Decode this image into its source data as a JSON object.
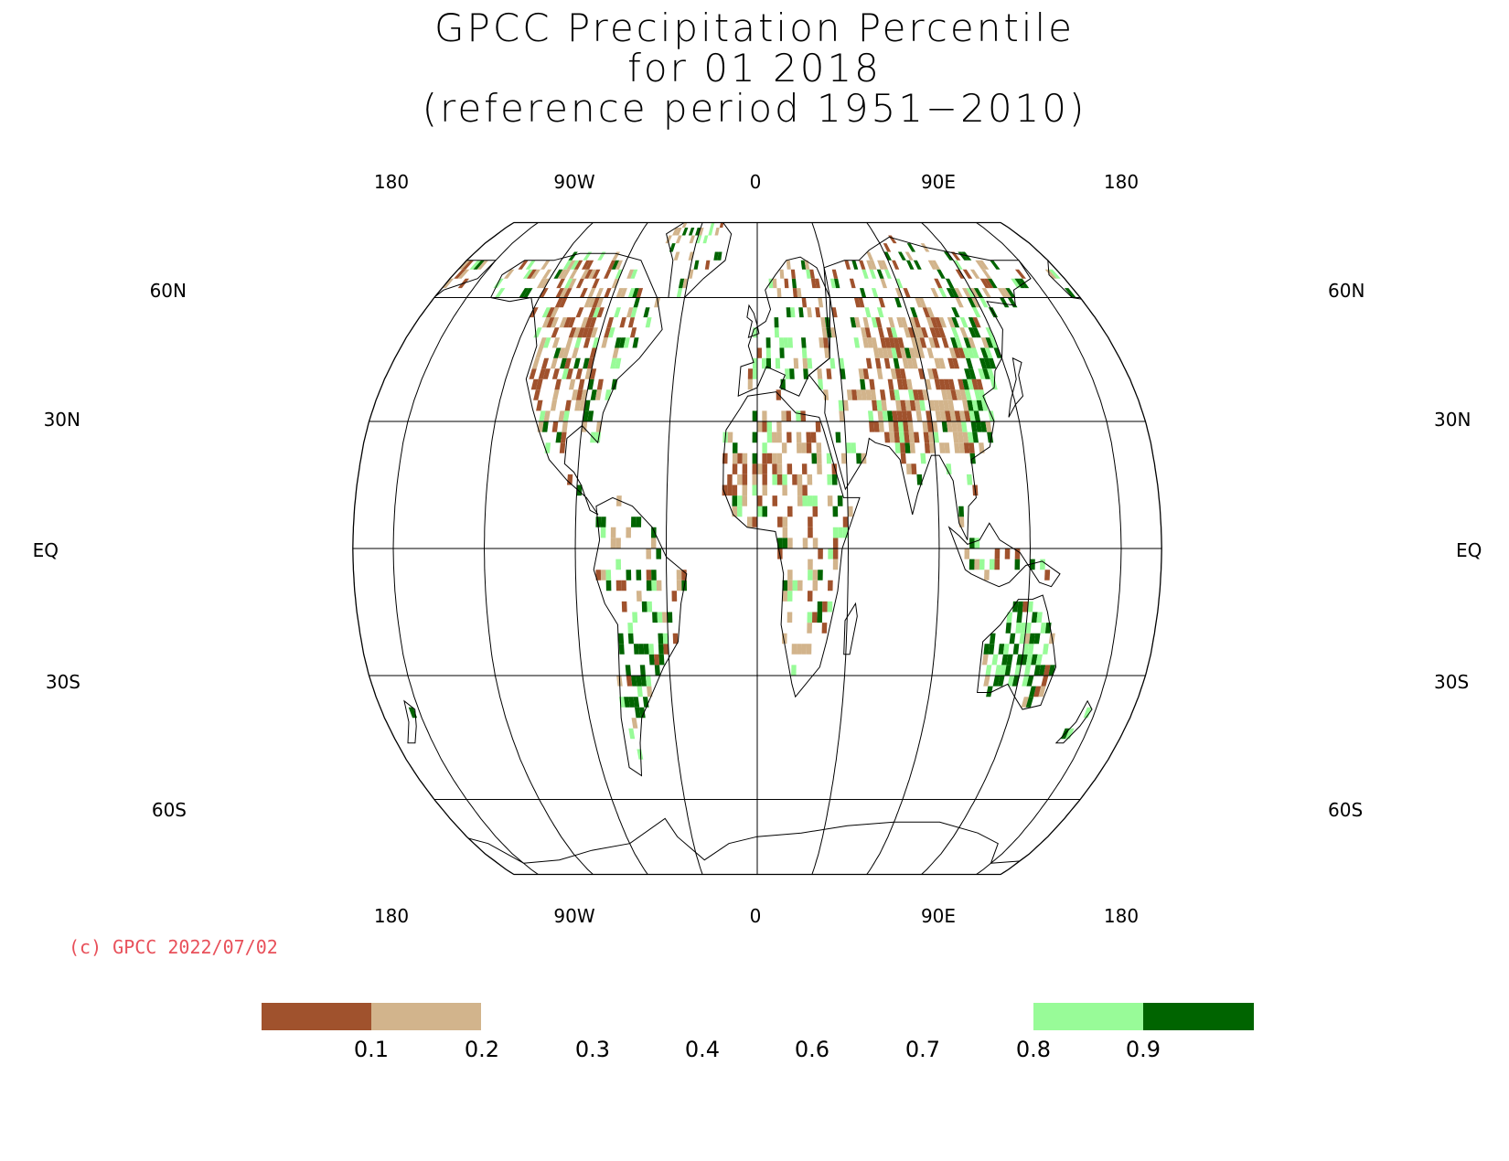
{
  "title": {
    "line1": "GPCC Precipitation Percentile",
    "line2": "for 01 2018",
    "line3": "(reference period 1951−2010)"
  },
  "map": {
    "projection": "robinson",
    "top_lon_labels": [
      "180",
      "90W",
      "0",
      "90E",
      "180"
    ],
    "bottom_lon_labels": [
      "180",
      "90W",
      "0",
      "90E",
      "180"
    ],
    "left_lat_labels": [
      "60N",
      "30N",
      "EQ",
      "30S",
      "60S"
    ],
    "right_lat_labels": [
      "60N",
      "30N",
      "EQ",
      "30S",
      "60S"
    ],
    "colors": {
      "dry_strong": "#a0522d",
      "dry": "#d2b48c",
      "wet": "#98fb98",
      "wet_strong": "#006400",
      "coast": "#000000",
      "grid": "#000000"
    }
  },
  "credit": "(c) GPCC 2022/07/02",
  "legend": {
    "tick_labels": [
      "0.1",
      "0.2",
      "0.3",
      "0.4",
      "0.6",
      "0.7",
      "0.8",
      "0.9"
    ],
    "bins": [
      {
        "from": "0",
        "to": "0.1",
        "color": "#a0522d"
      },
      {
        "from": "0.1",
        "to": "0.2",
        "color": "#d2b48c"
      },
      {
        "from": "0.8",
        "to": "0.9",
        "color": "#98fb98"
      },
      {
        "from": "0.9",
        "to": "1",
        "color": "#006400"
      }
    ]
  }
}
